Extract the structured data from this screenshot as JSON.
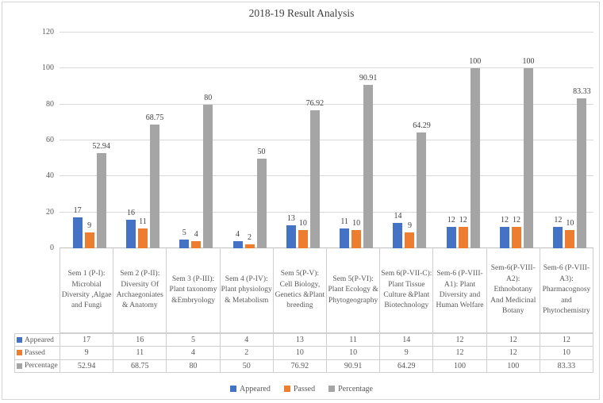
{
  "chart_data": {
    "type": "bar",
    "title": "2018-19 Result Analysis",
    "categories": [
      "Sem 1 (P-I): Microbial Diversity ,Algae and Fungi",
      "Sem 2 (P-II): Diversity Of Archaegoniates & Anatomy",
      "Sem 3 (P-III): Plant taxonomy &Embryology",
      "Sem 4 (P-IV): Plant physiology & Metabolism",
      "Sem 5(P-V): Cell Biology, Genetics &Plant breeding",
      "Sem 5(P-VI): Plant Ecology & Phytogeography",
      "Sem 6(P-VII-C): Plant Tissue Culture &Plant Biotechnology",
      "Sem-6 (P-VIII-A1): Plant Diversity and Human Welfare",
      "Sem-6(P-VIII-A2): Ethnobotany And Medicinal Botany",
      "Sem-6 (P-VIII-A3): Pharmacognosy and Phytochemistry"
    ],
    "series": [
      {
        "name": "Appeared",
        "color": "#4472C4",
        "values": [
          17,
          16,
          5,
          4,
          13,
          11,
          14,
          12,
          12,
          12
        ]
      },
      {
        "name": "Passed",
        "color": "#ED7D31",
        "values": [
          9,
          11,
          4,
          2,
          10,
          10,
          9,
          12,
          12,
          10
        ]
      },
      {
        "name": "Percentage",
        "color": "#A5A5A5",
        "values": [
          52.94,
          68.75,
          80,
          50,
          76.92,
          90.91,
          64.29,
          100,
          100,
          83.33
        ]
      }
    ],
    "ylim": [
      0,
      120
    ],
    "yticks": [
      0,
      20,
      40,
      60,
      80,
      100,
      120
    ],
    "grid": true,
    "legend_position": "bottom",
    "data_table_shown": true,
    "colors": {
      "gridline": "#D9D9D9",
      "axis_line": "#BFBFBF",
      "table_border": "#CFCFCF",
      "tick_text": "#595959",
      "data_label_text": "#404040",
      "title_text": "#3F3F3F"
    }
  }
}
